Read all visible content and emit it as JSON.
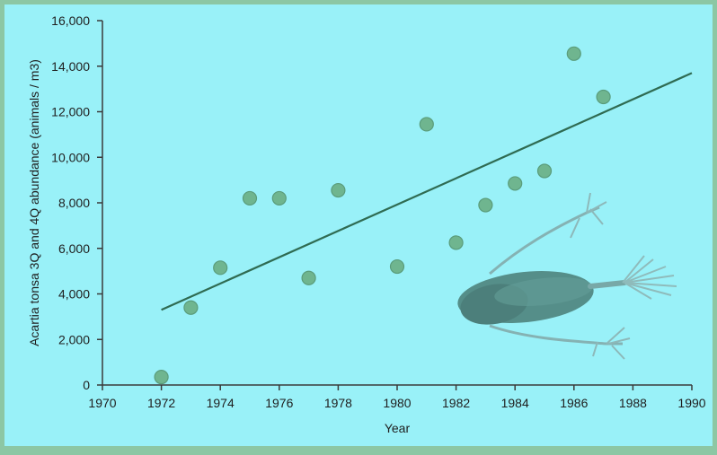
{
  "chart_data": {
    "type": "scatter",
    "xlabel": "Year",
    "ylabel": "Acartia tonsa 3Q and 4Q abundance  (animals / m3)",
    "xlim": [
      1970,
      1990
    ],
    "ylim": [
      0,
      16000
    ],
    "x_ticks": [
      1970,
      1972,
      1974,
      1976,
      1978,
      1980,
      1982,
      1984,
      1986,
      1988,
      1990
    ],
    "y_ticks": [
      0,
      2000,
      4000,
      6000,
      8000,
      10000,
      12000,
      14000,
      16000
    ],
    "y_tick_labels": [
      "0",
      "2,000",
      "4,000",
      "6,000",
      "8,000",
      "10,000",
      "12,000",
      "14,000",
      "16,000"
    ],
    "x_tick_labels": [
      "1970",
      "1972",
      "1974",
      "1976",
      "1978",
      "1980",
      "1982",
      "1984",
      "1986",
      "1988",
      "1990"
    ],
    "points": [
      {
        "x": 1972,
        "y": 350
      },
      {
        "x": 1973,
        "y": 3400
      },
      {
        "x": 1974,
        "y": 5150
      },
      {
        "x": 1975,
        "y": 8200
      },
      {
        "x": 1976,
        "y": 8200
      },
      {
        "x": 1977,
        "y": 4700
      },
      {
        "x": 1978,
        "y": 8550
      },
      {
        "x": 1980,
        "y": 5200
      },
      {
        "x": 1981,
        "y": 11450
      },
      {
        "x": 1982,
        "y": 6250
      },
      {
        "x": 1983,
        "y": 7900
      },
      {
        "x": 1984,
        "y": 8850
      },
      {
        "x": 1985,
        "y": 9400
      },
      {
        "x": 1986,
        "y": 14550
      },
      {
        "x": 1987,
        "y": 12650
      }
    ],
    "trendline": {
      "x": [
        1972,
        1990
      ],
      "y": [
        3300,
        13700
      ]
    },
    "grid": false,
    "colors": {
      "background": "#99f1f8",
      "frame": "#8cc7a4",
      "marker": "#6fb58f",
      "marker_edge": "#5a9c7b",
      "trendline": "#2f6b52",
      "axis": "#3a3a3a"
    }
  },
  "image": {
    "subject": "copepod-illustration"
  }
}
